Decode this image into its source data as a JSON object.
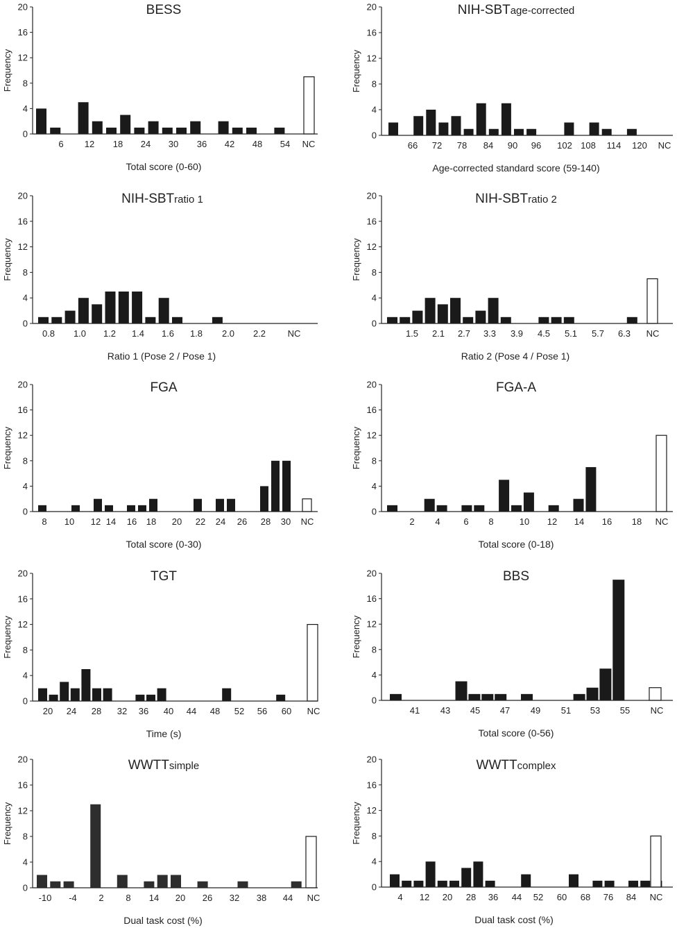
{
  "chart_data": [
    {
      "type": "bar",
      "title": "BESS",
      "title_sub": "",
      "xlabel": "Total score (0-60)",
      "ylabel": "Frequency",
      "ylim": [
        0,
        20
      ],
      "yticks": [
        "0",
        "4",
        "8",
        "12",
        "16",
        "20"
      ],
      "xtick_labels": [
        "6",
        "12",
        "18",
        "24",
        "30",
        "36",
        "42",
        "48",
        "54",
        "NC"
      ],
      "bars": [
        {
          "slot": 0,
          "value": 4
        },
        {
          "slot": 1,
          "value": 1
        },
        {
          "slot": 3,
          "value": 5
        },
        {
          "slot": 4,
          "value": 2
        },
        {
          "slot": 5,
          "value": 1
        },
        {
          "slot": 6,
          "value": 3
        },
        {
          "slot": 7,
          "value": 1
        },
        {
          "slot": 8,
          "value": 2
        },
        {
          "slot": 9,
          "value": 1
        },
        {
          "slot": 10,
          "value": 1
        },
        {
          "slot": 11,
          "value": 2
        },
        {
          "slot": 13,
          "value": 2
        },
        {
          "slot": 14,
          "value": 1
        },
        {
          "slot": 15,
          "value": 1
        },
        {
          "slot": 17,
          "value": 1
        }
      ],
      "nc": 9
    },
    {
      "type": "bar",
      "title": "NIH-SBT",
      "title_sub": "age-corrected",
      "xlabel": "Age-corrected standard score  (59-140)",
      "ylabel": "Frequency",
      "ylim": [
        0,
        20
      ],
      "yticks": [
        "0",
        "4",
        "8",
        "12",
        "16",
        "20"
      ],
      "xtick_labels": [
        "66",
        "72",
        "78",
        "84",
        "90",
        "96",
        "102",
        "108",
        "114",
        "120",
        "NC"
      ],
      "bars": [
        {
          "slot": 0,
          "value": 2
        },
        {
          "slot": 2,
          "value": 3
        },
        {
          "slot": 3,
          "value": 4
        },
        {
          "slot": 4,
          "value": 2
        },
        {
          "slot": 5,
          "value": 3
        },
        {
          "slot": 6,
          "value": 1
        },
        {
          "slot": 7,
          "value": 5
        },
        {
          "slot": 8,
          "value": 1
        },
        {
          "slot": 9,
          "value": 5
        },
        {
          "slot": 10,
          "value": 1
        },
        {
          "slot": 11,
          "value": 1
        },
        {
          "slot": 14,
          "value": 2
        },
        {
          "slot": 16,
          "value": 2
        },
        {
          "slot": 17,
          "value": 1
        },
        {
          "slot": 19,
          "value": 1
        }
      ],
      "nc": 0
    },
    {
      "type": "bar",
      "title": "NIH-SBT",
      "title_sub": "ratio 1",
      "xlabel": "Ratio 1 (Pose 2 / Pose 1)",
      "ylabel": "Frequency",
      "ylim": [
        0,
        20
      ],
      "yticks": [
        "0",
        "4",
        "8",
        "12",
        "16",
        "20"
      ],
      "xtick_labels": [
        "0.8",
        "1.0",
        "1.2",
        "1.4",
        "1.6",
        "1.8",
        "2.0",
        "2.2",
        "NC"
      ],
      "bars": [
        {
          "slot": 0,
          "value": 1
        },
        {
          "slot": 1,
          "value": 1
        },
        {
          "slot": 2,
          "value": 2
        },
        {
          "slot": 3,
          "value": 4
        },
        {
          "slot": 4,
          "value": 3
        },
        {
          "slot": 5,
          "value": 5
        },
        {
          "slot": 6,
          "value": 5
        },
        {
          "slot": 7,
          "value": 5
        },
        {
          "slot": 8,
          "value": 1
        },
        {
          "slot": 9,
          "value": 4
        },
        {
          "slot": 10,
          "value": 1
        },
        {
          "slot": 13,
          "value": 1
        }
      ],
      "nc": 0
    },
    {
      "type": "bar",
      "title": "NIH-SBT",
      "title_sub": "ratio 2",
      "xlabel": "Ratio 2 (Pose 4 / Pose 1)",
      "ylabel": "Frequency",
      "ylim": [
        0,
        20
      ],
      "yticks": [
        "0",
        "4",
        "8",
        "12",
        "16",
        "20"
      ],
      "xtick_labels": [
        "1.5",
        "2.1",
        "2.7",
        "3.3",
        "3.9",
        "4.5",
        "5.1",
        "5.7",
        "6.3",
        "NC"
      ],
      "bars": [
        {
          "slot": 0,
          "value": 1
        },
        {
          "slot": 1,
          "value": 1
        },
        {
          "slot": 2,
          "value": 2
        },
        {
          "slot": 3,
          "value": 4
        },
        {
          "slot": 4,
          "value": 3
        },
        {
          "slot": 5,
          "value": 4
        },
        {
          "slot": 6,
          "value": 1
        },
        {
          "slot": 7,
          "value": 2
        },
        {
          "slot": 8,
          "value": 4
        },
        {
          "slot": 9,
          "value": 1
        },
        {
          "slot": 12,
          "value": 1
        },
        {
          "slot": 13,
          "value": 1
        },
        {
          "slot": 14,
          "value": 1
        },
        {
          "slot": 19,
          "value": 1
        }
      ],
      "nc": 7
    },
    {
      "type": "bar",
      "title": "FGA",
      "title_sub": "",
      "xlabel": "Total score (0-30)",
      "ylabel": "Frequency",
      "ylim": [
        0,
        20
      ],
      "yticks": [
        "0",
        "4",
        "8",
        "12",
        "16",
        "20"
      ],
      "xtick_labels": [
        "8",
        "10",
        "12",
        "14",
        "16",
        "18",
        "20",
        "22",
        "24",
        "26",
        "28",
        "30",
        "NC"
      ],
      "bars": [
        {
          "slot": 0,
          "value": 1
        },
        {
          "slot": 3,
          "value": 1
        },
        {
          "slot": 5,
          "value": 2
        },
        {
          "slot": 6,
          "value": 1
        },
        {
          "slot": 8,
          "value": 1
        },
        {
          "slot": 9,
          "value": 1
        },
        {
          "slot": 10,
          "value": 2
        },
        {
          "slot": 14,
          "value": 2
        },
        {
          "slot": 16,
          "value": 2
        },
        {
          "slot": 17,
          "value": 2
        },
        {
          "slot": 20,
          "value": 4
        },
        {
          "slot": 21,
          "value": 8
        },
        {
          "slot": 22,
          "value": 8
        }
      ],
      "nc": 2
    },
    {
      "type": "bar",
      "title": "FGA-A",
      "title_sub": "",
      "xlabel": "Total score (0-18)",
      "ylabel": "Frequency",
      "ylim": [
        0,
        20
      ],
      "yticks": [
        "0",
        "4",
        "8",
        "12",
        "16",
        "20"
      ],
      "xtick_labels": [
        "2",
        "4",
        "6",
        "8",
        "10",
        "12",
        "14",
        "16",
        "18",
        "NC"
      ],
      "bars": [
        {
          "slot": 0,
          "value": 1
        },
        {
          "slot": 3,
          "value": 2
        },
        {
          "slot": 4,
          "value": 1
        },
        {
          "slot": 6,
          "value": 1
        },
        {
          "slot": 7,
          "value": 1
        },
        {
          "slot": 9,
          "value": 5
        },
        {
          "slot": 10,
          "value": 1
        },
        {
          "slot": 11,
          "value": 3
        },
        {
          "slot": 13,
          "value": 1
        },
        {
          "slot": 15,
          "value": 2
        },
        {
          "slot": 16,
          "value": 7
        }
      ],
      "nc": 12
    },
    {
      "type": "bar",
      "title": "TGT",
      "title_sub": "",
      "xlabel": "Time (s)",
      "ylabel": "Frequency",
      "ylim": [
        0,
        20
      ],
      "yticks": [
        "0",
        "4",
        "8",
        "12",
        "16",
        "20"
      ],
      "xtick_labels": [
        "20",
        "24",
        "28",
        "32",
        "36",
        "40",
        "44",
        "48",
        "52",
        "56",
        "60",
        "NC"
      ],
      "bars": [
        {
          "slot": 0,
          "value": 2
        },
        {
          "slot": 1,
          "value": 1
        },
        {
          "slot": 2,
          "value": 3
        },
        {
          "slot": 3,
          "value": 2
        },
        {
          "slot": 4,
          "value": 5
        },
        {
          "slot": 5,
          "value": 2
        },
        {
          "slot": 6,
          "value": 2
        },
        {
          "slot": 9,
          "value": 1
        },
        {
          "slot": 10,
          "value": 1
        },
        {
          "slot": 11,
          "value": 2
        },
        {
          "slot": 17,
          "value": 2
        },
        {
          "slot": 22,
          "value": 1
        }
      ],
      "nc": 12
    },
    {
      "type": "bar",
      "title": "BBS",
      "title_sub": "",
      "xlabel": "Total score (0-56)",
      "ylabel": "Frequency",
      "ylim": [
        0,
        20
      ],
      "yticks": [
        "0",
        "4",
        "8",
        "12",
        "16",
        "20"
      ],
      "xtick_labels": [
        "41",
        "43",
        "45",
        "47",
        "49",
        "51",
        "53",
        "55",
        "NC"
      ],
      "bars": [
        {
          "slot": 0,
          "value": 1
        },
        {
          "slot": 5,
          "value": 3
        },
        {
          "slot": 6,
          "value": 1
        },
        {
          "slot": 7,
          "value": 1
        },
        {
          "slot": 8,
          "value": 1
        },
        {
          "slot": 10,
          "value": 1
        },
        {
          "slot": 14,
          "value": 1
        },
        {
          "slot": 15,
          "value": 2
        },
        {
          "slot": 16,
          "value": 5
        },
        {
          "slot": 17,
          "value": 19
        }
      ],
      "nc": 2
    },
    {
      "type": "bar",
      "title": "WWTT",
      "title_sub": "simple",
      "xlabel": "Dual task cost (%)",
      "ylabel": "Frequency",
      "ylim": [
        0,
        20
      ],
      "yticks": [
        "0",
        "4",
        "8",
        "12",
        "16",
        "20"
      ],
      "xtick_labels": [
        "-10",
        "-4",
        "2",
        "8",
        "14",
        "20",
        "26",
        "32",
        "38",
        "44",
        "NC"
      ],
      "bars": [
        {
          "slot": 0,
          "value": 2
        },
        {
          "slot": 1,
          "value": 1
        },
        {
          "slot": 2,
          "value": 1
        },
        {
          "slot": 4,
          "value": 13
        },
        {
          "slot": 6,
          "value": 2
        },
        {
          "slot": 8,
          "value": 1
        },
        {
          "slot": 9,
          "value": 2
        },
        {
          "slot": 10,
          "value": 2
        },
        {
          "slot": 12,
          "value": 1
        },
        {
          "slot": 15,
          "value": 1
        },
        {
          "slot": 19,
          "value": 1
        }
      ],
      "nc": 8
    },
    {
      "type": "bar",
      "title": "WWTT",
      "title_sub": "complex",
      "xlabel": "Dual task cost (%)",
      "ylabel": "Frequency",
      "ylim": [
        0,
        20
      ],
      "yticks": [
        "0",
        "4",
        "8",
        "12",
        "16",
        "20"
      ],
      "xtick_labels": [
        "4",
        "12",
        "20",
        "28",
        "36",
        "44",
        "52",
        "60",
        "68",
        "76",
        "84",
        "NC"
      ],
      "bars": [
        {
          "slot": 0,
          "value": 2
        },
        {
          "slot": 1,
          "value": 1
        },
        {
          "slot": 2,
          "value": 1
        },
        {
          "slot": 3,
          "value": 4
        },
        {
          "slot": 4,
          "value": 1
        },
        {
          "slot": 5,
          "value": 1
        },
        {
          "slot": 6,
          "value": 3
        },
        {
          "slot": 7,
          "value": 4
        },
        {
          "slot": 8,
          "value": 1
        },
        {
          "slot": 11,
          "value": 2
        },
        {
          "slot": 15,
          "value": 2
        },
        {
          "slot": 17,
          "value": 1
        },
        {
          "slot": 18,
          "value": 1
        },
        {
          "slot": 20,
          "value": 1
        },
        {
          "slot": 21,
          "value": 1
        },
        {
          "slot": 22,
          "value": 1
        }
      ],
      "nc": 8
    }
  ]
}
